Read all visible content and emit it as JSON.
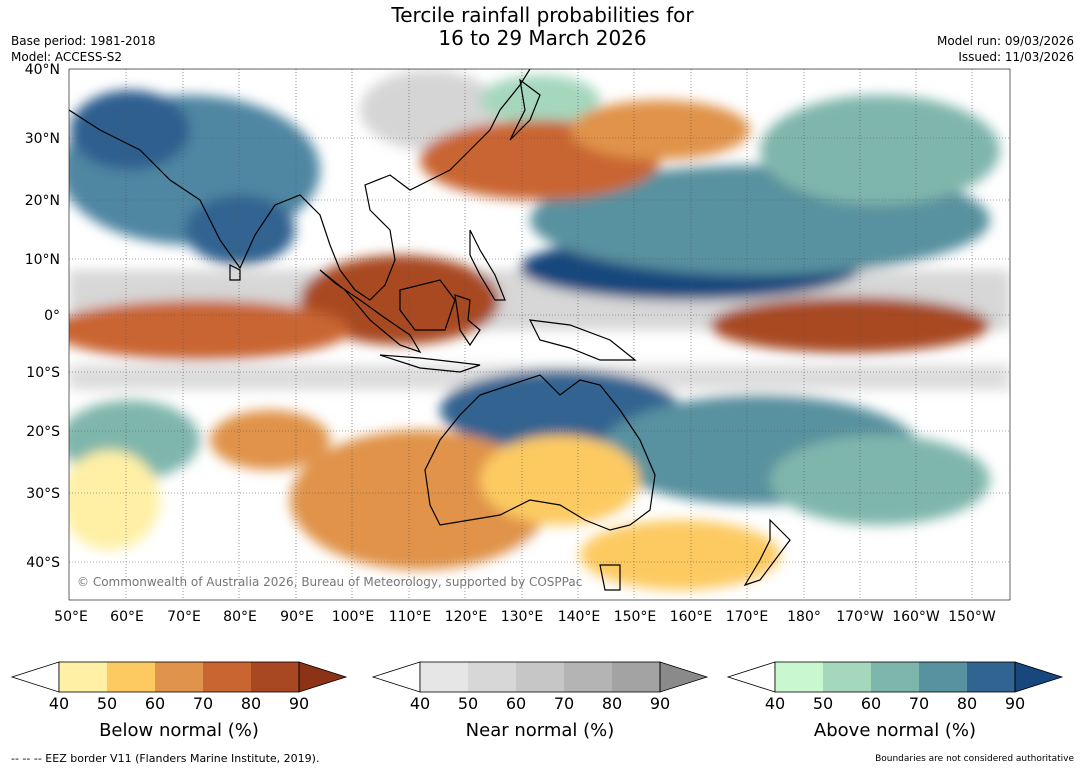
{
  "title": {
    "line1": "Tercile rainfall probabilities for",
    "line2": "16 to 29 March 2026"
  },
  "meta_left": {
    "base_period": "Base period: 1981-2018",
    "model": "Model: ACCESS-S2"
  },
  "meta_right": {
    "model_run": "Model run: 09/03/2026",
    "issued": "Issued: 11/03/2026"
  },
  "map": {
    "lat_labels": [
      "40°N",
      "30°N",
      "20°N",
      "10°N",
      "0°",
      "10°S",
      "20°S",
      "30°S",
      "40°S"
    ],
    "lon_labels": [
      "50°E",
      "60°E",
      "70°E",
      "80°E",
      "90°E",
      "100°E",
      "110°E",
      "120°E",
      "130°E",
      "140°E",
      "150°E",
      "160°E",
      "170°E",
      "180°",
      "170°W",
      "160°W",
      "150°W"
    ],
    "credit": "© Commonwealth of Australia 2026, Bureau of Meteorology, supported by COSPPac",
    "ocean_color": "#ffffff",
    "coast_color": "#000000"
  },
  "colorbars": [
    {
      "name": "below",
      "label": "Below normal (%)",
      "ticks": [
        "40",
        "50",
        "60",
        "70",
        "80",
        "90"
      ],
      "colors": [
        "#fff0a6",
        "#fdca62",
        "#e0934a",
        "#c96530",
        "#a84822"
      ],
      "extend_color": "#8c3217"
    },
    {
      "name": "near",
      "label": "Near normal (%)",
      "ticks": [
        "40",
        "50",
        "60",
        "70",
        "80",
        "90"
      ],
      "colors": [
        "#e6e6e6",
        "#d7d7d7",
        "#c6c6c6",
        "#b4b4b4",
        "#a3a3a3"
      ],
      "extend_color": "#8a8a8a"
    },
    {
      "name": "above",
      "label": "Above normal (%)",
      "ticks": [
        "40",
        "50",
        "60",
        "70",
        "80",
        "90"
      ],
      "colors": [
        "#c9f7d0",
        "#a5d7bd",
        "#7fb6ac",
        "#58919f",
        "#326491"
      ],
      "extend_color": "#17477d"
    }
  ],
  "footer": {
    "eez": "-- -- -- EEZ border V11 (Flanders Marine Institute, 2019).",
    "disclaimer": "Boundaries are not considered authoritative"
  }
}
